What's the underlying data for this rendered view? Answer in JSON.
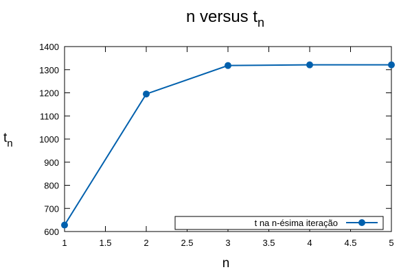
{
  "chart_data": {
    "type": "line",
    "title": "n versus t",
    "title_subscript": "n",
    "xlabel": "n",
    "ylabel": "t",
    "ylabel_subscript": "n",
    "xlim": [
      1,
      5
    ],
    "ylim": [
      600,
      1400
    ],
    "xticks": [
      "1",
      "1.5",
      "2",
      "2.5",
      "3",
      "3.5",
      "4",
      "4.5",
      "5"
    ],
    "yticks": [
      "600",
      "700",
      "800",
      "900",
      "1000",
      "1100",
      "1200",
      "1300",
      "1400"
    ],
    "grid": false,
    "legend_position": "bottom-right",
    "series": [
      {
        "name": "t na n-ésima iteração",
        "color": "#0060ad",
        "line_style": "solid",
        "marker": "circle",
        "x": [
          1,
          2,
          3,
          4,
          5
        ],
        "y": [
          628,
          1195,
          1318,
          1321,
          1321
        ]
      }
    ]
  }
}
